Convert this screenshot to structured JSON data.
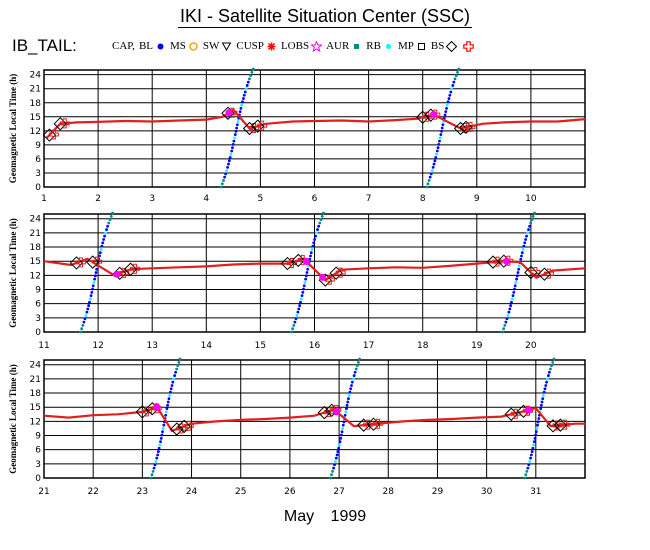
{
  "title": "IKI - Satellite Situation Center (SSC)",
  "tail_label": "IB_TAIL:",
  "legend": [
    {
      "label": "CAP,",
      "icon": "none",
      "color": "#000000"
    },
    {
      "label": "BL",
      "icon": "filled-circle",
      "color": "#0000ff"
    },
    {
      "label": "MS",
      "icon": "open-circle",
      "color": "#ffa500"
    },
    {
      "label": "SW",
      "icon": "open-triangle-down",
      "color": "#000000"
    },
    {
      "label": "CUSP",
      "icon": "asterisk",
      "color": "#ff0000"
    },
    {
      "label": "LOBS",
      "icon": "open-star",
      "color": "#ff00ff"
    },
    {
      "label": "AUR",
      "icon": "filled-square",
      "color": "#008b8b"
    },
    {
      "label": "RB",
      "icon": "filled-circle-small",
      "color": "#00ffff"
    },
    {
      "label": "MP",
      "icon": "open-square",
      "color": "#000000"
    },
    {
      "label": "BS",
      "icon": "open-diamond",
      "color": "#000000"
    },
    {
      "label": "",
      "icon": "open-cross",
      "color": "#ff0000"
    }
  ],
  "month_label": {
    "month": "May",
    "year": "1999"
  },
  "colors": {
    "line": "#e0201c",
    "bl": "#0000ff",
    "lobs": "#ff00ff",
    "aur": "#008b8b",
    "rb": "#00ffff",
    "bs": "#000000"
  },
  "chart_data": [
    {
      "type": "line",
      "ylabel": "Geomagnetic Local Time (h)",
      "yticks": [
        0,
        3,
        6,
        9,
        12,
        15,
        18,
        21,
        24
      ],
      "ylim": [
        0,
        25
      ],
      "xlim": [
        1,
        11
      ],
      "xticks": [
        1,
        2,
        3,
        4,
        5,
        6,
        7,
        8,
        9,
        10
      ],
      "grid": true,
      "orbit_local_time_h": [
        {
          "day": 1.05,
          "lt": 10.5
        },
        {
          "day": 1.3,
          "lt": 13.5
        },
        {
          "day": 1.6,
          "lt": 13.8
        },
        {
          "day": 2.0,
          "lt": 13.9
        },
        {
          "day": 2.5,
          "lt": 14.1
        },
        {
          "day": 3.0,
          "lt": 14.0
        },
        {
          "day": 3.5,
          "lt": 14.2
        },
        {
          "day": 4.0,
          "lt": 14.4
        },
        {
          "day": 4.3,
          "lt": 15.0
        },
        {
          "day": 4.5,
          "lt": 16.5
        },
        {
          "day": 4.8,
          "lt": 12.5
        },
        {
          "day": 5.1,
          "lt": 13.5
        },
        {
          "day": 5.6,
          "lt": 14.0
        },
        {
          "day": 6.0,
          "lt": 14.1
        },
        {
          "day": 6.5,
          "lt": 14.2
        },
        {
          "day": 7.0,
          "lt": 14.0
        },
        {
          "day": 7.5,
          "lt": 14.3
        },
        {
          "day": 7.9,
          "lt": 14.6
        },
        {
          "day": 8.2,
          "lt": 15.5
        },
        {
          "day": 8.7,
          "lt": 12.5
        },
        {
          "day": 9.1,
          "lt": 13.5
        },
        {
          "day": 9.5,
          "lt": 13.8
        },
        {
          "day": 10.0,
          "lt": 14.0
        },
        {
          "day": 10.5,
          "lt": 14.0
        },
        {
          "day": 11.0,
          "lt": 14.5
        }
      ],
      "crossings_bs": [
        1.1,
        1.3,
        4.4,
        4.8,
        4.95,
        8.0,
        8.15,
        8.7,
        8.8
      ],
      "crossings_lobs": [
        4.42,
        8.2
      ],
      "bl_sweeps_days": [
        4.55,
        8.35
      ]
    },
    {
      "type": "line",
      "ylabel": "Geomagnetic Local Time (h)",
      "yticks": [
        0,
        3,
        6,
        9,
        12,
        15,
        18,
        21,
        24
      ],
      "ylim": [
        0,
        25
      ],
      "xlim": [
        11,
        21
      ],
      "xticks": [
        11,
        12,
        13,
        14,
        15,
        16,
        17,
        18,
        19,
        20
      ],
      "grid": true,
      "orbit_local_time_h": [
        {
          "day": 11.0,
          "lt": 15.0
        },
        {
          "day": 11.5,
          "lt": 14.2
        },
        {
          "day": 11.8,
          "lt": 15.5
        },
        {
          "day": 12.3,
          "lt": 12.0
        },
        {
          "day": 12.6,
          "lt": 13.3
        },
        {
          "day": 13.0,
          "lt": 13.5
        },
        {
          "day": 13.5,
          "lt": 13.7
        },
        {
          "day": 14.0,
          "lt": 13.9
        },
        {
          "day": 14.5,
          "lt": 14.3
        },
        {
          "day": 15.0,
          "lt": 14.5
        },
        {
          "day": 15.5,
          "lt": 14.5
        },
        {
          "day": 15.8,
          "lt": 15.5
        },
        {
          "day": 16.2,
          "lt": 11.0
        },
        {
          "day": 16.5,
          "lt": 13.2
        },
        {
          "day": 17.0,
          "lt": 13.5
        },
        {
          "day": 17.5,
          "lt": 13.7
        },
        {
          "day": 18.0,
          "lt": 13.6
        },
        {
          "day": 18.5,
          "lt": 14.0
        },
        {
          "day": 19.0,
          "lt": 14.5
        },
        {
          "day": 19.5,
          "lt": 15.0
        },
        {
          "day": 19.8,
          "lt": 14.8
        },
        {
          "day": 20.1,
          "lt": 11.5
        },
        {
          "day": 20.4,
          "lt": 13.0
        },
        {
          "day": 21.0,
          "lt": 13.5
        }
      ],
      "crossings_bs": [
        11.6,
        11.9,
        12.4,
        12.6,
        15.5,
        15.7,
        16.2,
        16.4,
        19.3,
        19.5,
        20.0,
        20.25
      ],
      "crossings_lobs": [
        12.35,
        15.85,
        16.15,
        19.55
      ],
      "bl_sweeps_days": [
        11.95,
        15.85,
        19.75
      ]
    },
    {
      "type": "line",
      "ylabel": "Geomagnetic Local Time (h)",
      "yticks": [
        0,
        3,
        6,
        9,
        12,
        15,
        18,
        21,
        24
      ],
      "ylim": [
        0,
        25
      ],
      "xlim": [
        21,
        32
      ],
      "xticks": [
        21,
        22,
        23,
        24,
        25,
        26,
        27,
        28,
        29,
        30,
        31
      ],
      "grid": true,
      "orbit_local_time_h": [
        {
          "day": 21.0,
          "lt": 13.2
        },
        {
          "day": 21.5,
          "lt": 12.8
        },
        {
          "day": 22.0,
          "lt": 13.3
        },
        {
          "day": 22.5,
          "lt": 13.5
        },
        {
          "day": 23.0,
          "lt": 14.0
        },
        {
          "day": 23.3,
          "lt": 15.0
        },
        {
          "day": 23.6,
          "lt": 10.0
        },
        {
          "day": 24.0,
          "lt": 11.5
        },
        {
          "day": 24.5,
          "lt": 12.0
        },
        {
          "day": 25.0,
          "lt": 12.3
        },
        {
          "day": 25.5,
          "lt": 12.5
        },
        {
          "day": 26.0,
          "lt": 12.8
        },
        {
          "day": 26.5,
          "lt": 13.2
        },
        {
          "day": 26.9,
          "lt": 14.5
        },
        {
          "day": 27.3,
          "lt": 11.0
        },
        {
          "day": 27.8,
          "lt": 11.5
        },
        {
          "day": 28.3,
          "lt": 12.0
        },
        {
          "day": 28.8,
          "lt": 12.3
        },
        {
          "day": 29.3,
          "lt": 12.5
        },
        {
          "day": 29.8,
          "lt": 12.8
        },
        {
          "day": 30.3,
          "lt": 13.0
        },
        {
          "day": 30.7,
          "lt": 14.0
        },
        {
          "day": 31.0,
          "lt": 14.8
        },
        {
          "day": 31.3,
          "lt": 11.0
        },
        {
          "day": 31.8,
          "lt": 11.5
        },
        {
          "day": 32.0,
          "lt": 11.5
        }
      ],
      "crossings_bs": [
        23.0,
        23.2,
        23.7,
        23.85,
        26.7,
        26.85,
        27.5,
        27.7,
        30.5,
        30.75,
        31.35,
        31.5
      ],
      "crossings_lobs": [
        23.3,
        26.95,
        30.85
      ],
      "bl_sweeps_days": [
        23.45,
        27.1,
        31.05
      ]
    }
  ]
}
